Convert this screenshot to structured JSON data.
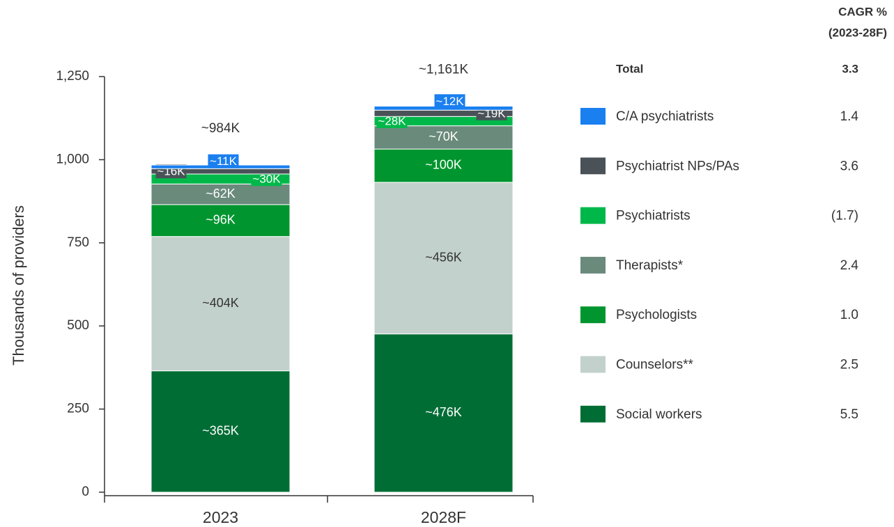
{
  "chart_data": {
    "type": "stacked_bar",
    "ylabel": "Thousands of providers",
    "categories": [
      "2023",
      "2028F"
    ],
    "ylim": [
      0,
      1250
    ],
    "yticks": [
      0,
      250,
      500,
      750,
      {
        "value": 1000,
        "label": "1,000"
      },
      {
        "value": 1250,
        "label": "1,250"
      }
    ],
    "grid": false,
    "totals": [
      984,
      1161
    ],
    "total_labels": [
      "~984K",
      "~1,161K"
    ],
    "cagr_header": [
      "CAGR %",
      "(2023-28F)"
    ],
    "total_name": "Total",
    "total_cagr": "3.3",
    "series": [
      {
        "name": "Social workers",
        "color": "#006d35",
        "values": [
          365,
          476
        ],
        "value_labels": [
          "~365K",
          "~476K"
        ],
        "cagr": "5.5"
      },
      {
        "name": "Counselors**",
        "color": "#c3d1cc",
        "values": [
          404,
          456
        ],
        "value_labels": [
          "~404K",
          "~456K"
        ],
        "cagr": "2.5"
      },
      {
        "name": "Psychologists",
        "color": "#00952f",
        "values": [
          96,
          100
        ],
        "value_labels": [
          "~96K",
          "~100K"
        ],
        "cagr": "1.0"
      },
      {
        "name": "Therapists*",
        "color": "#6a8a7c",
        "values": [
          62,
          70
        ],
        "value_labels": [
          "~62K",
          "~70K"
        ],
        "cagr": "2.4"
      },
      {
        "name": "Psychiatrists",
        "color": "#00b84a",
        "values": [
          30,
          28
        ],
        "value_labels": [
          "~30K",
          "~28K"
        ],
        "cagr": "(1.7)"
      },
      {
        "name": "Psychiatrist NPs/PAs",
        "color": "#4a5258",
        "values": [
          16,
          19
        ],
        "value_labels": [
          "~16K",
          "~19K"
        ],
        "cagr": "3.6"
      },
      {
        "name": "C/A psychiatrists",
        "color": "#1a7fef",
        "values": [
          11,
          12
        ],
        "value_labels": [
          "~11K",
          "~12K"
        ],
        "cagr": "1.4"
      }
    ]
  }
}
